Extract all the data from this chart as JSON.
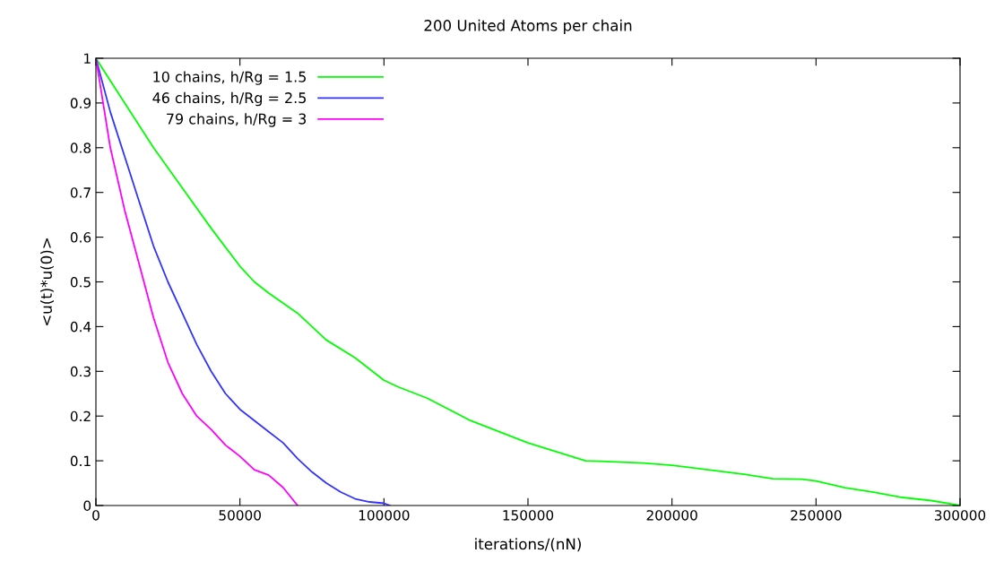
{
  "chart_data": {
    "type": "line",
    "title": "200 United Atoms per chain",
    "xlabel": "iterations/(nN)",
    "ylabel": "<u(t)*u(0)>",
    "xlim": [
      0,
      300000
    ],
    "xticks": [
      0,
      50000,
      100000,
      150000,
      200000,
      250000,
      300000
    ],
    "ylim": [
      0,
      1
    ],
    "yticks": [
      0,
      0.1,
      0.2,
      0.3,
      0.4,
      0.5,
      0.6,
      0.7,
      0.8,
      0.9,
      1
    ],
    "grid": false,
    "legend": "top left",
    "line_style": "solid",
    "marker": "none",
    "series": [
      {
        "name": "10 chains, h/Rg = 1.5",
        "color": "#00ff00",
        "x": [
          0,
          10000,
          20000,
          30000,
          40000,
          50000,
          55000,
          60000,
          70000,
          80000,
          90000,
          100000,
          105000,
          115000,
          130000,
          150000,
          165000,
          170000,
          175000,
          190000,
          200000,
          215000,
          225000,
          235000,
          245000,
          250000,
          260000,
          270000,
          280000,
          290000,
          300000
        ],
        "values": [
          1,
          0.9,
          0.8,
          0.71,
          0.62,
          0.535,
          0.5,
          0.475,
          0.43,
          0.37,
          0.33,
          0.28,
          0.265,
          0.24,
          0.19,
          0.14,
          0.11,
          0.1,
          0.099,
          0.095,
          0.09,
          0.078,
          0.07,
          0.06,
          0.059,
          0.055,
          0.04,
          0.03,
          0.018,
          0.011,
          0
        ]
      },
      {
        "name": "46 chains, h/Rg = 2.5",
        "color": "#3333ff",
        "x": [
          0,
          5000,
          10000,
          15000,
          20000,
          25000,
          30000,
          35000,
          40000,
          45000,
          50000,
          55000,
          60000,
          65000,
          70000,
          75000,
          80000,
          85000,
          90000,
          95000,
          100000,
          102000
        ],
        "values": [
          1,
          0.88,
          0.78,
          0.68,
          0.58,
          0.5,
          0.43,
          0.36,
          0.3,
          0.25,
          0.215,
          0.19,
          0.165,
          0.14,
          0.105,
          0.075,
          0.05,
          0.03,
          0.015,
          0.008,
          0.005,
          0
        ]
      },
      {
        "name": "79 chains, h/Rg = 3",
        "color": "#ff00ff",
        "x": [
          0,
          5000,
          10000,
          15000,
          20000,
          25000,
          30000,
          35000,
          40000,
          45000,
          50000,
          55000,
          60000,
          65000,
          70000
        ],
        "values": [
          1,
          0.8,
          0.66,
          0.54,
          0.42,
          0.32,
          0.25,
          0.2,
          0.17,
          0.135,
          0.11,
          0.08,
          0.068,
          0.04,
          0
        ]
      }
    ]
  }
}
